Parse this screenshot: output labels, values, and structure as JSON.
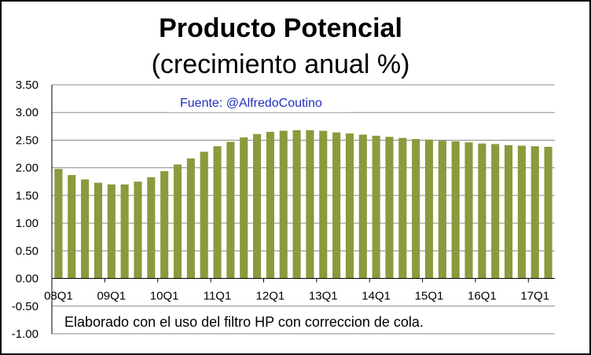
{
  "chart_data": {
    "type": "bar",
    "title": "Producto Potencial",
    "subtitle": "(crecimiento anual %)",
    "source": "Fuente: @AlfredoCoutino",
    "note": "Elaborado con el uso del filtro HP con correccion de cola.",
    "color": "#8a9a3c",
    "ylim": [
      -1.0,
      3.5
    ],
    "yticks": [
      "3.50",
      "3.00",
      "2.50",
      "2.00",
      "1.50",
      "1.00",
      "0.50",
      "0.00",
      "-0.50",
      "-1.00"
    ],
    "xtick_labels": [
      "08Q1",
      "09Q1",
      "10Q1",
      "11Q1",
      "12Q1",
      "13Q1",
      "14Q1",
      "15Q1",
      "16Q1",
      "17Q1"
    ],
    "categories": [
      "08Q1",
      "08Q2",
      "08Q3",
      "08Q4",
      "09Q1",
      "09Q2",
      "09Q3",
      "09Q4",
      "10Q1",
      "10Q2",
      "10Q3",
      "10Q4",
      "11Q1",
      "11Q2",
      "11Q3",
      "11Q4",
      "12Q1",
      "12Q2",
      "12Q3",
      "12Q4",
      "13Q1",
      "13Q2",
      "13Q3",
      "13Q4",
      "14Q1",
      "14Q2",
      "14Q3",
      "14Q4",
      "15Q1",
      "15Q2",
      "15Q3",
      "15Q4",
      "16Q1",
      "16Q2",
      "16Q3",
      "16Q4",
      "17Q1",
      "17Q2"
    ],
    "values": [
      1.98,
      1.87,
      1.79,
      1.73,
      1.7,
      1.7,
      1.75,
      1.83,
      1.94,
      2.06,
      2.17,
      2.29,
      2.39,
      2.47,
      2.55,
      2.61,
      2.65,
      2.67,
      2.68,
      2.68,
      2.67,
      2.64,
      2.62,
      2.6,
      2.58,
      2.56,
      2.54,
      2.52,
      2.51,
      2.49,
      2.48,
      2.46,
      2.44,
      2.43,
      2.41,
      2.4,
      2.39,
      2.38
    ],
    "grid": true
  }
}
